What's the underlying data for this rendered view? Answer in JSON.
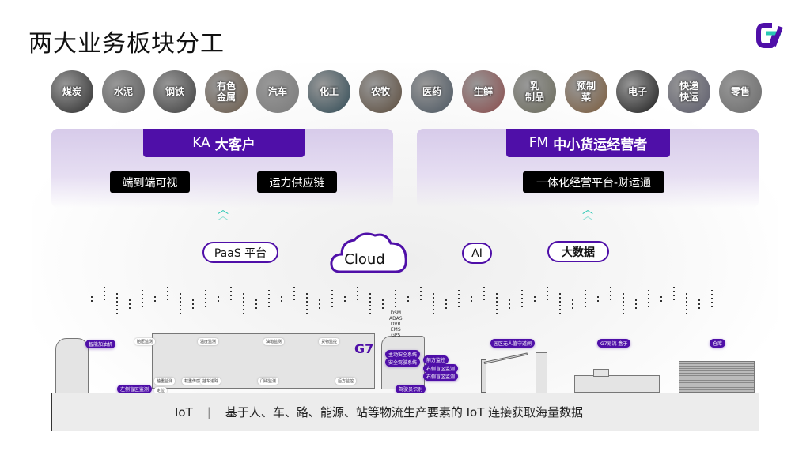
{
  "title": "两大业务板块分工",
  "brand": {
    "logo": "G7",
    "purple": "#4f0fa8",
    "teal": "#29c8b4"
  },
  "industries": [
    {
      "label": "煤炭",
      "bg": "#2a2a2a"
    },
    {
      "label": "水泥",
      "bg": "#5a5a5a"
    },
    {
      "label": "钢铁",
      "bg": "#3d3d3d"
    },
    {
      "label": "有色\n金属",
      "bg": "#6a5a4a"
    },
    {
      "label": "汽车",
      "bg": "#7a7a7a"
    },
    {
      "label": "化工",
      "bg": "#2f4a55"
    },
    {
      "label": "农牧",
      "bg": "#5a4a3a"
    },
    {
      "label": "医药",
      "bg": "#4a5560"
    },
    {
      "label": "生鲜",
      "bg": "#8a4a4a"
    },
    {
      "label": "乳\n制品",
      "bg": "#6a6a5a"
    },
    {
      "label": "预制\n菜",
      "bg": "#7a5a3a"
    },
    {
      "label": "电子",
      "bg": "#1a1a1a"
    },
    {
      "label": "快递\n快运",
      "bg": "#5a5a6a"
    },
    {
      "label": "零售",
      "bg": "#6a6a6a"
    }
  ],
  "ka": {
    "prefix": "KA",
    "name": "大客户",
    "items": [
      "端到端可视",
      "运力供应链"
    ]
  },
  "fm": {
    "prefix": "FM",
    "name": "中小货运经营者",
    "items": [
      "一体化经营平台-财运通"
    ]
  },
  "platform": {
    "paas": "PaaS 平台",
    "cloud": "Cloud",
    "ai": "AI",
    "bigdata": "大数据"
  },
  "devices": {
    "truck_stack": [
      "DSM",
      "ADAS",
      "DVR",
      "EMS",
      "GPS"
    ],
    "fuel": "智能加油机",
    "gate": "园区无人值守道闸",
    "box": "G7易流 盒子",
    "warehouse": "仓库",
    "truck_tags": [
      "主动安全系统",
      "安全驾驶系统",
      "前方监控",
      "右侧盲区监测",
      "右侧盲区监测",
      "左侧盲区监测",
      "驾驶员识别"
    ],
    "trailer_tags": [
      "胎压监测",
      "温度监测",
      "油箱监测",
      "货物监控",
      "轴重监测",
      "载重传感器",
      "挂车追踪",
      "门磁监测",
      "后方监控",
      "定位"
    ]
  },
  "iot": {
    "label": "IoT",
    "sep": "|",
    "text": "基于人、车、路、能源、站等物流生产要素的 IoT 连接获取海量数据"
  }
}
